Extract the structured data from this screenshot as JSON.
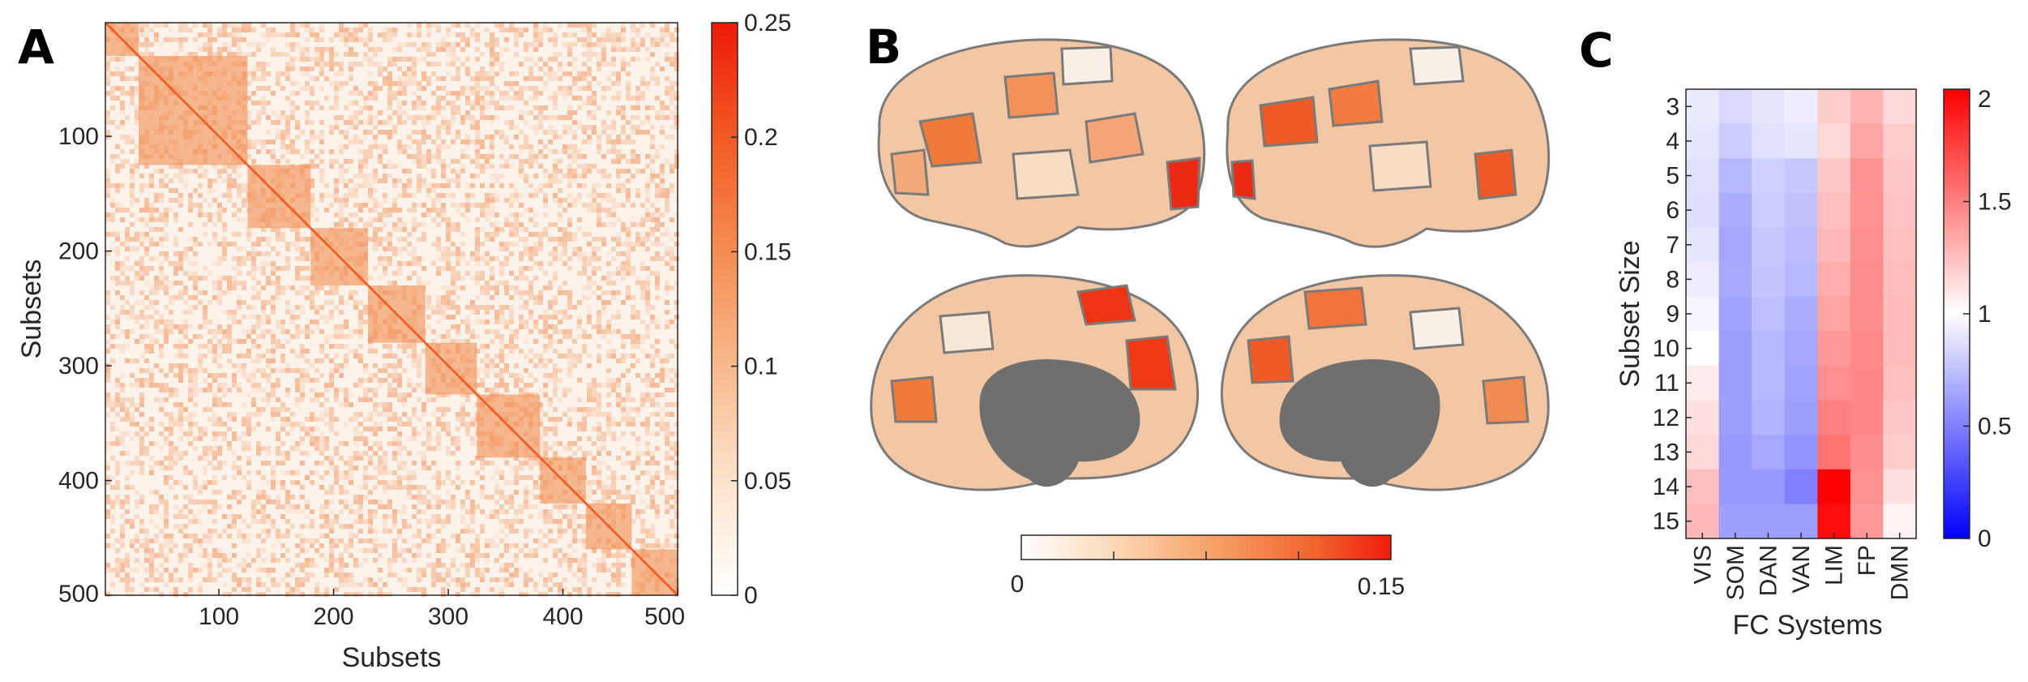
{
  "panels": {
    "a": {
      "letter": "A"
    },
    "b": {
      "letter": "B"
    },
    "c": {
      "letter": "C"
    }
  },
  "colors": {
    "orange_ramp": [
      "#ffffff",
      "#fce3cc",
      "#f7b98c",
      "#f48d52",
      "#f25a24",
      "#ee1a0a"
    ],
    "diverging": {
      "low": "#0000ff",
      "mid": "#ffffff",
      "high": "#ff0000"
    },
    "medial_wall": "#6f6f6f",
    "parcel_border": "#7a7a7a"
  },
  "chart_data": [
    {
      "panel": "A",
      "type": "heatmap",
      "title": "",
      "xlabel": "Subsets",
      "ylabel": "Subsets",
      "xlim": [
        1,
        500
      ],
      "ylim": [
        1,
        500
      ],
      "x_ticks": [
        "100",
        "200",
        "300",
        "400",
        "500"
      ],
      "y_ticks": [
        "100",
        "200",
        "300",
        "400",
        "500"
      ],
      "diagonal_blocks": [
        [
          1,
          30
        ],
        [
          30,
          125
        ],
        [
          125,
          180
        ],
        [
          180,
          230
        ],
        [
          230,
          280
        ],
        [
          280,
          325
        ],
        [
          325,
          380
        ],
        [
          380,
          420
        ],
        [
          420,
          460
        ],
        [
          460,
          500
        ]
      ],
      "colorbar": {
        "range": [
          0,
          0.25
        ],
        "ticks": [
          "0",
          "0.05",
          "0.1",
          "0.15",
          "0.2",
          "0.25"
        ]
      }
    },
    {
      "panel": "B",
      "type": "heatmap",
      "title": "",
      "description_views": [
        "lateral-left",
        "lateral-right",
        "medial-left",
        "medial-right"
      ],
      "colorbar": {
        "range": [
          0,
          0.15
        ],
        "ticks": [
          "0",
          "0.15"
        ]
      }
    },
    {
      "panel": "C",
      "type": "heatmap",
      "title": "",
      "xlabel": "FC Systems",
      "ylabel": "Subset Size",
      "columns": [
        "VIS",
        "SOM",
        "DAN",
        "VAN",
        "LIM",
        "FP",
        "DMN"
      ],
      "rows": [
        "3",
        "4",
        "5",
        "6",
        "7",
        "8",
        "9",
        "10",
        "11",
        "12",
        "13",
        "14",
        "15"
      ],
      "values": [
        [
          0.92,
          0.85,
          0.9,
          0.93,
          1.2,
          1.3,
          1.15
        ],
        [
          0.9,
          0.8,
          0.88,
          0.9,
          1.15,
          1.35,
          1.2
        ],
        [
          0.88,
          0.72,
          0.82,
          0.78,
          1.22,
          1.42,
          1.22
        ],
        [
          0.87,
          0.68,
          0.8,
          0.76,
          1.25,
          1.43,
          1.24
        ],
        [
          0.9,
          0.65,
          0.78,
          0.74,
          1.28,
          1.44,
          1.25
        ],
        [
          0.93,
          0.66,
          0.77,
          0.72,
          1.32,
          1.45,
          1.26
        ],
        [
          0.96,
          0.63,
          0.75,
          0.68,
          1.36,
          1.45,
          1.27
        ],
        [
          1.0,
          0.62,
          0.72,
          0.65,
          1.4,
          1.46,
          1.27
        ],
        [
          1.08,
          0.62,
          0.72,
          0.63,
          1.44,
          1.47,
          1.25
        ],
        [
          1.12,
          0.62,
          0.7,
          0.62,
          1.5,
          1.47,
          1.22
        ],
        [
          1.15,
          0.6,
          0.66,
          0.58,
          1.55,
          1.45,
          1.2
        ],
        [
          1.25,
          0.6,
          0.6,
          0.5,
          2.0,
          1.43,
          1.12
        ],
        [
          1.28,
          0.62,
          0.62,
          0.62,
          1.95,
          1.4,
          1.05
        ]
      ],
      "colorbar": {
        "range": [
          0,
          2
        ],
        "ticks": [
          "0",
          "0.5",
          "1",
          "1.5",
          "2"
        ]
      }
    }
  ]
}
